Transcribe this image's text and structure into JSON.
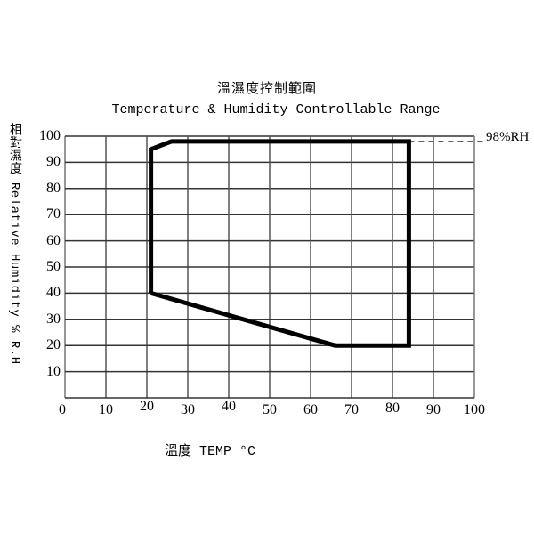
{
  "chart_data": {
    "type": "area",
    "title": "溫濕度控制範圍",
    "subtitle": "Temperature & Humidity Controllable Range",
    "xlabel": "溫度 TEMP °C",
    "ylabel": "相對濕度 Relative Humidity % R.H",
    "xlim": [
      0,
      100
    ],
    "ylim": [
      0,
      100
    ],
    "x_ticks": [
      "0",
      "10",
      "20",
      "30",
      "40",
      "50",
      "60",
      "70",
      "80",
      "90",
      "100"
    ],
    "y_ticks": [
      "100",
      "90",
      "80",
      "70",
      "60",
      "50",
      "40",
      "30",
      "20",
      "10"
    ],
    "grid": true,
    "series": [
      {
        "name": "Controllable Range",
        "points": [
          [
            21,
            40
          ],
          [
            21,
            95
          ],
          [
            26,
            98
          ],
          [
            84,
            98
          ],
          [
            84,
            20
          ],
          [
            66,
            20
          ],
          [
            21,
            40
          ]
        ]
      }
    ],
    "annotations": [
      {
        "text": "98%RH",
        "y": 98,
        "style": "dashed reference line"
      }
    ]
  }
}
